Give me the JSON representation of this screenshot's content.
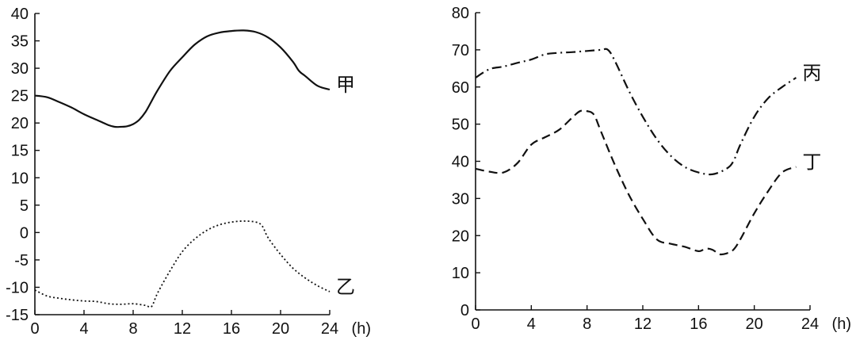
{
  "chart_data": [
    {
      "type": "line",
      "xlabel": "(h)",
      "ylabel": "",
      "xlim": [
        0,
        24
      ],
      "ylim": [
        -15,
        40
      ],
      "xticks": [
        "0",
        "4",
        "8",
        "12",
        "16",
        "20",
        "24"
      ],
      "yticks": [
        "-15",
        "-10",
        "-5",
        "0",
        "5",
        "10",
        "15",
        "20",
        "25",
        "30",
        "35",
        "40"
      ],
      "grid": false,
      "series": [
        {
          "name": "甲",
          "style": "solid",
          "color": "#111111",
          "x": [
            0,
            1,
            2,
            3,
            4,
            5,
            5.5,
            6,
            6.5,
            7,
            7.5,
            8,
            8.5,
            9,
            9.5,
            10,
            11,
            12,
            13,
            14,
            15,
            16,
            17,
            18,
            19,
            20,
            21,
            21.5,
            22,
            23,
            24
          ],
          "y": [
            25,
            24.7,
            23.8,
            22.8,
            21.6,
            20.6,
            20.1,
            19.6,
            19.3,
            19.3,
            19.4,
            19.8,
            20.6,
            22,
            24,
            26,
            29.5,
            32,
            34.3,
            35.8,
            36.5,
            36.8,
            36.9,
            36.6,
            35.6,
            33.8,
            31.2,
            29.5,
            28.6,
            26.8,
            26.1
          ]
        },
        {
          "name": "乙",
          "style": "dotted",
          "color": "#111111",
          "x": [
            0,
            1,
            2,
            3,
            4,
            5,
            6,
            7,
            8,
            9,
            9.5,
            10,
            11,
            12,
            13,
            14,
            15,
            16,
            17,
            18,
            18.5,
            19,
            20,
            21,
            22,
            23,
            24
          ],
          "y": [
            -10.5,
            -11.6,
            -12,
            -12.3,
            -12.5,
            -12.6,
            -13,
            -13.1,
            -13,
            -13.3,
            -13.5,
            -11,
            -7,
            -3.5,
            -1.2,
            0.4,
            1.4,
            1.9,
            2.1,
            1.9,
            1.2,
            -1,
            -4,
            -6.5,
            -8.3,
            -9.7,
            -10.8
          ]
        }
      ]
    },
    {
      "type": "line",
      "xlabel": "(h)",
      "ylabel": "",
      "xlim": [
        0,
        24
      ],
      "ylim": [
        0,
        80
      ],
      "xticks": [
        "0",
        "4",
        "8",
        "12",
        "16",
        "20",
        "24"
      ],
      "yticks": [
        "0",
        "10",
        "20",
        "30",
        "40",
        "50",
        "60",
        "70",
        "80"
      ],
      "grid": false,
      "series": [
        {
          "name": "丙",
          "style": "dashdot",
          "color": "#111111",
          "x": [
            0,
            1,
            2,
            3,
            4,
            5,
            6,
            7,
            8,
            9,
            9.5,
            10,
            11,
            12,
            13,
            14,
            15,
            16,
            17,
            18,
            18.5,
            19,
            20,
            21,
            22,
            23
          ],
          "y": [
            62.5,
            64.8,
            65.5,
            66.5,
            67.4,
            68.8,
            69.2,
            69.4,
            69.7,
            70,
            70,
            67,
            59,
            52,
            46,
            41.5,
            38.5,
            37,
            36.5,
            38,
            40,
            44.5,
            52,
            57,
            60,
            62.5
          ]
        },
        {
          "name": "丁",
          "style": "dashed",
          "color": "#111111",
          "x": [
            0,
            1,
            2,
            3,
            4,
            5,
            6,
            7,
            7.5,
            8,
            8.5,
            9,
            10,
            11,
            12,
            13,
            14,
            15,
            16,
            16.5,
            17,
            17.5,
            18,
            18.5,
            19,
            20,
            21,
            22,
            23
          ],
          "y": [
            38,
            37.2,
            37,
            39.5,
            44.5,
            46.5,
            48.5,
            52,
            53.5,
            53.5,
            52.5,
            48,
            39,
            31,
            24.5,
            19,
            17.8,
            17,
            15.8,
            16.5,
            16.2,
            15,
            15.2,
            16.2,
            19,
            26,
            32,
            37,
            38.5
          ]
        }
      ]
    }
  ]
}
